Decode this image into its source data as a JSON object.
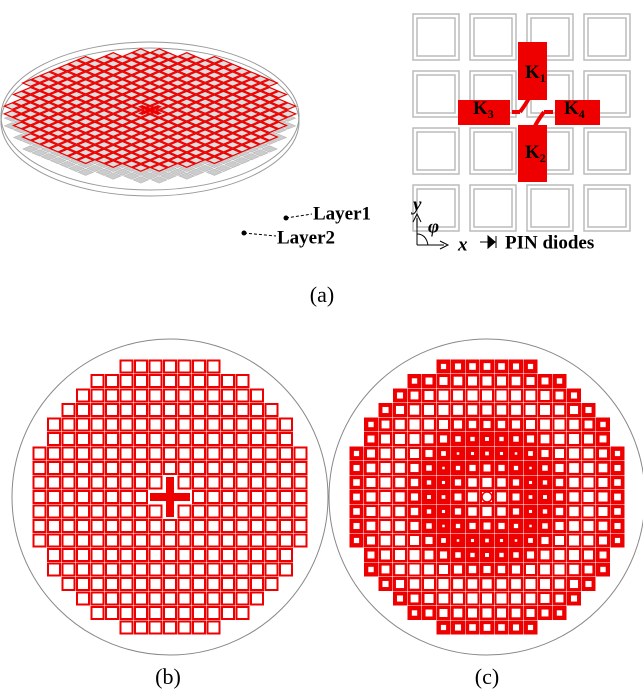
{
  "figure": {
    "panel_a": {
      "layers": [
        "Layer1",
        "Layer2"
      ],
      "cell_labels": [
        {
          "letter": "K",
          "sub": "1"
        },
        {
          "letter": "K",
          "sub": "2"
        },
        {
          "letter": "K",
          "sub": "3"
        },
        {
          "letter": "K",
          "sub": "4"
        }
      ],
      "axes": {
        "y": "y",
        "x": "x",
        "angle": "φ"
      },
      "legend": "PIN diodes"
    },
    "captions": [
      "(a)",
      "(b)",
      "(c)"
    ]
  }
}
